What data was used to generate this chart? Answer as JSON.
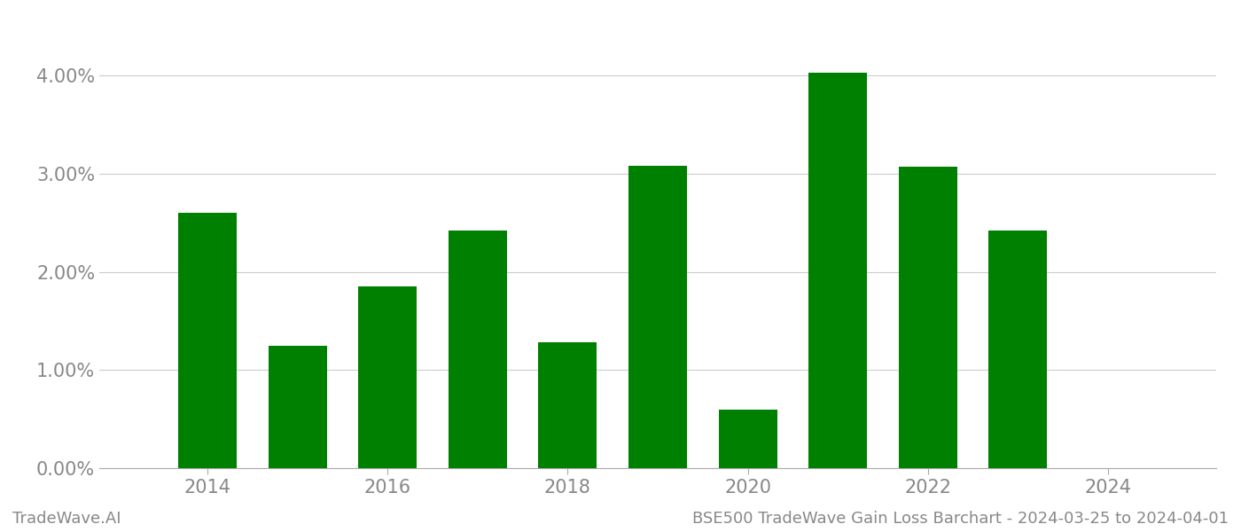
{
  "years": [
    2014,
    2015,
    2016,
    2017,
    2018,
    2019,
    2020,
    2021,
    2022,
    2023
  ],
  "values": [
    0.026,
    0.0125,
    0.0185,
    0.0242,
    0.0128,
    0.0308,
    0.006,
    0.0403,
    0.0307,
    0.0242
  ],
  "bar_color": "#008000",
  "background_color": "#ffffff",
  "grid_color": "#cccccc",
  "title": "BSE500 TradeWave Gain Loss Barchart - 2024-03-25 to 2024-04-01",
  "footer_left": "TradeWave.AI",
  "ylim": [
    0,
    0.045
  ],
  "yticks": [
    0.0,
    0.01,
    0.02,
    0.03,
    0.04
  ],
  "xticks": [
    2014,
    2016,
    2018,
    2020,
    2022,
    2024
  ],
  "xlim": [
    2012.8,
    2025.2
  ],
  "axis_color": "#aaaaaa",
  "tick_label_color": "#888888",
  "footer_color": "#888888",
  "bar_width": 0.65,
  "tick_fontsize": 15,
  "footer_fontsize": 13
}
